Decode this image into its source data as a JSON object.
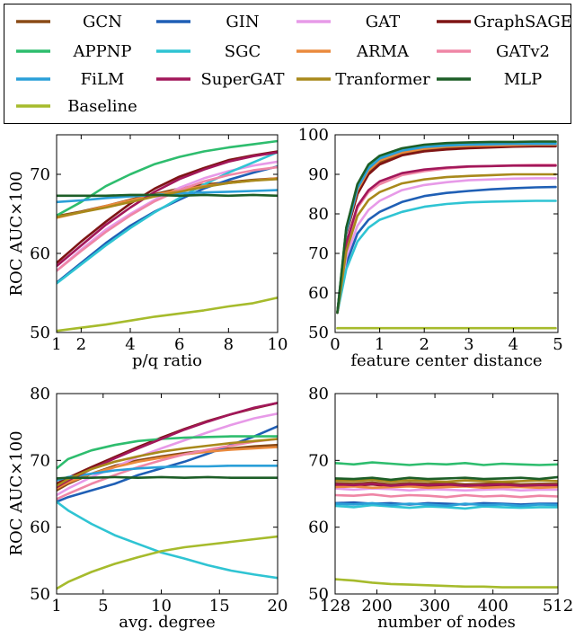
{
  "legend": {
    "entries": [
      {
        "name": "GCN",
        "color": "#8a4a16"
      },
      {
        "name": "GIN",
        "color": "#1f5fb5"
      },
      {
        "name": "GAT",
        "color": "#e79ae8"
      },
      {
        "name": "GraphSAGE",
        "color": "#7e1414"
      },
      {
        "name": "APPNP",
        "color": "#2ebd6e"
      },
      {
        "name": "SGC",
        "color": "#2fc4d3"
      },
      {
        "name": "ARMA",
        "color": "#ea8a3e"
      },
      {
        "name": "GATv2",
        "color": "#ef86a6"
      },
      {
        "name": "FiLM",
        "color": "#2a9fd8"
      },
      {
        "name": "SuperGAT",
        "color": "#a2175a"
      },
      {
        "name": "Tranformer",
        "color": "#a8891b"
      },
      {
        "name": "MLP",
        "color": "#1d5e27"
      },
      {
        "name": "Baseline",
        "color": "#a6bb2c"
      }
    ]
  },
  "chart_data": [
    {
      "type": "line",
      "xlabel": "p/q ratio",
      "ylabel": "ROC AUC×100",
      "xlim": [
        1,
        10
      ],
      "ylim": [
        50,
        75
      ],
      "xticks": [
        1,
        2,
        4,
        6,
        8,
        10
      ],
      "yticks": [
        50,
        60,
        70
      ],
      "x": [
        1,
        2,
        3,
        4,
        5,
        6,
        7,
        8,
        9,
        10
      ],
      "series": [
        {
          "name": "GCN",
          "values": [
            64.7,
            65.3,
            66.0,
            66.8,
            67.5,
            68.2,
            68.7,
            69.0,
            69.3,
            69.5
          ]
        },
        {
          "name": "GIN",
          "values": [
            56.3,
            58.8,
            61.3,
            63.5,
            65.3,
            66.8,
            68.2,
            69.3,
            70.2,
            71.0
          ]
        },
        {
          "name": "GAT",
          "values": [
            57.8,
            60.5,
            63.0,
            65.0,
            66.8,
            68.3,
            69.5,
            70.4,
            71.1,
            71.6
          ]
        },
        {
          "name": "GraphSAGE",
          "values": [
            58.8,
            61.5,
            64.0,
            66.3,
            68.2,
            69.7,
            70.8,
            71.8,
            72.4,
            72.9
          ]
        },
        {
          "name": "APPNP",
          "values": [
            64.8,
            66.5,
            68.5,
            70.0,
            71.3,
            72.2,
            72.9,
            73.4,
            73.8,
            74.2
          ]
        },
        {
          "name": "SGC",
          "values": [
            56.2,
            58.6,
            61.0,
            63.2,
            65.2,
            67.0,
            68.7,
            70.2,
            71.5,
            72.8
          ]
        },
        {
          "name": "ARMA",
          "values": [
            64.5,
            65.2,
            66.0,
            66.7,
            67.4,
            68.0,
            68.5,
            68.9,
            69.2,
            69.5
          ]
        },
        {
          "name": "GATv2",
          "values": [
            57.8,
            60.3,
            62.7,
            64.8,
            66.6,
            68.0,
            69.1,
            69.9,
            70.5,
            70.9
          ]
        },
        {
          "name": "FiLM",
          "values": [
            66.5,
            66.7,
            67.0,
            67.2,
            67.4,
            67.6,
            67.7,
            67.8,
            67.9,
            68.0
          ]
        },
        {
          "name": "SuperGAT",
          "values": [
            58.4,
            61.0,
            63.6,
            65.8,
            67.8,
            69.4,
            70.6,
            71.6,
            72.3,
            72.8
          ]
        },
        {
          "name": "Tranformer",
          "values": [
            64.6,
            65.2,
            65.8,
            66.5,
            67.2,
            67.8,
            68.4,
            68.9,
            69.2,
            69.4
          ]
        },
        {
          "name": "MLP",
          "values": [
            67.3,
            67.3,
            67.3,
            67.4,
            67.4,
            67.3,
            67.4,
            67.3,
            67.4,
            67.3
          ]
        },
        {
          "name": "Baseline",
          "values": [
            50.2,
            50.6,
            51.0,
            51.5,
            52.0,
            52.4,
            52.8,
            53.3,
            53.7,
            54.4
          ]
        }
      ]
    },
    {
      "type": "line",
      "xlabel": "feature center distance",
      "ylabel": "",
      "xlim": [
        0,
        5
      ],
      "ylim": [
        50,
        100
      ],
      "xticks": [
        0,
        1,
        2,
        3,
        4,
        5
      ],
      "yticks": [
        50,
        60,
        70,
        80,
        90,
        100
      ],
      "x": [
        0.05,
        0.25,
        0.5,
        0.75,
        1.0,
        1.5,
        2.0,
        2.5,
        3.0,
        3.5,
        4.0,
        4.5,
        4.95
      ],
      "series": [
        {
          "name": "GCN",
          "values": [
            55,
            75,
            85,
            90.5,
            93,
            95.3,
            96.2,
            96.7,
            97,
            97.1,
            97.2,
            97.3,
            97.3
          ]
        },
        {
          "name": "GIN",
          "values": [
            55,
            67.5,
            75,
            78.5,
            80.5,
            83,
            84.5,
            85.3,
            85.8,
            86.2,
            86.5,
            86.7,
            86.8
          ]
        },
        {
          "name": "GAT",
          "values": [
            55,
            69,
            77,
            81,
            83.3,
            86,
            87.3,
            88,
            88.5,
            88.7,
            88.9,
            89,
            89
          ]
        },
        {
          "name": "GraphSAGE",
          "values": [
            55,
            75,
            85,
            90,
            92.5,
            94.8,
            95.8,
            96.3,
            96.6,
            96.8,
            97,
            97.1,
            97.1
          ]
        },
        {
          "name": "APPNP",
          "values": [
            55,
            76.5,
            87,
            92,
            94.3,
            96.3,
            97.2,
            97.6,
            97.8,
            97.9,
            98,
            98,
            98
          ]
        },
        {
          "name": "SGC",
          "values": [
            55,
            66,
            73,
            76.5,
            78.5,
            80.5,
            81.8,
            82.5,
            82.9,
            83.1,
            83.2,
            83.3,
            83.3
          ]
        },
        {
          "name": "ARMA",
          "values": [
            55,
            75.5,
            86,
            91,
            93.5,
            95.5,
            96.5,
            97,
            97.2,
            97.3,
            97.4,
            97.5,
            97.5
          ]
        },
        {
          "name": "GATv2",
          "values": [
            55,
            72,
            81.5,
            85.5,
            87.5,
            89.8,
            90.8,
            91.5,
            91.9,
            92.1,
            92.3,
            92.4,
            92.4
          ]
        },
        {
          "name": "FiLM",
          "values": [
            55,
            75.5,
            86.5,
            91.5,
            94,
            96,
            96.9,
            97.3,
            97.5,
            97.6,
            97.7,
            97.7,
            97.7
          ]
        },
        {
          "name": "SuperGAT",
          "values": [
            55,
            72.5,
            82,
            86,
            88.2,
            90.3,
            91.2,
            91.7,
            92,
            92.1,
            92.2,
            92.2,
            92.2
          ]
        },
        {
          "name": "Tranformer",
          "values": [
            55,
            70.5,
            79.5,
            83.5,
            85.5,
            87.7,
            88.7,
            89.3,
            89.6,
            89.8,
            90,
            90,
            90
          ]
        },
        {
          "name": "MLP",
          "values": [
            55,
            76.5,
            87.5,
            92.5,
            94.7,
            96.6,
            97.5,
            97.9,
            98.1,
            98.2,
            98.2,
            98.3,
            98.3
          ]
        },
        {
          "name": "Baseline",
          "values": [
            51.1,
            51.1,
            51.1,
            51.1,
            51.1,
            51.1,
            51.1,
            51.1,
            51.1,
            51.1,
            51.1,
            51.1,
            51.1
          ]
        }
      ]
    },
    {
      "type": "line",
      "xlabel": "avg. degree",
      "ylabel": "ROC AUC×100",
      "xlim": [
        1,
        20
      ],
      "ylim": [
        50,
        80
      ],
      "xticks": [
        1,
        5,
        10,
        15,
        20
      ],
      "yticks": [
        50,
        60,
        70,
        80
      ],
      "x": [
        1,
        2,
        4,
        6,
        8,
        10,
        12,
        14,
        16,
        18,
        20
      ],
      "series": [
        {
          "name": "GCN",
          "values": [
            65.5,
            66.5,
            68,
            69.2,
            70,
            70.6,
            71.1,
            71.5,
            71.8,
            72.1,
            72.3
          ]
        },
        {
          "name": "GIN",
          "values": [
            63.8,
            64.5,
            65.5,
            66.5,
            67.8,
            68.8,
            69.8,
            71,
            72.3,
            73.6,
            75.1
          ]
        },
        {
          "name": "GAT",
          "values": [
            64.8,
            65.8,
            67.5,
            69,
            70.5,
            71.8,
            73,
            74.2,
            75.3,
            76.3,
            77
          ]
        },
        {
          "name": "GraphSAGE",
          "values": [
            66.5,
            67.4,
            69,
            70.5,
            72,
            73.4,
            74.7,
            75.9,
            76.9,
            77.8,
            78.6
          ]
        },
        {
          "name": "APPNP",
          "values": [
            68.8,
            70.2,
            71.5,
            72.3,
            72.9,
            73.2,
            73.4,
            73.5,
            73.6,
            73.6,
            73.6
          ]
        },
        {
          "name": "SGC",
          "values": [
            63.8,
            62.5,
            60.5,
            58.8,
            57.5,
            56.2,
            55.3,
            54.3,
            53.5,
            52.9,
            52.4
          ]
        },
        {
          "name": "ARMA",
          "values": [
            65.8,
            66.7,
            68,
            69,
            69.8,
            70.4,
            70.9,
            71.3,
            71.6,
            71.8,
            72
          ]
        },
        {
          "name": "GATv2",
          "values": [
            64.2,
            65,
            66.5,
            67.8,
            69,
            70,
            70.9,
            71.6,
            72.2,
            72.8,
            73.2
          ]
        },
        {
          "name": "FiLM",
          "values": [
            67,
            67.5,
            68,
            68.5,
            68.8,
            69,
            69.1,
            69.1,
            69.2,
            69.2,
            69.2
          ]
        },
        {
          "name": "SuperGAT",
          "values": [
            66,
            67,
            68.7,
            70.3,
            71.8,
            73.2,
            74.6,
            75.8,
            76.9,
            77.9,
            78.6
          ]
        },
        {
          "name": "Tranformer",
          "values": [
            66.2,
            67.2,
            68.7,
            69.8,
            70.6,
            71.3,
            71.8,
            72.2,
            72.6,
            72.9,
            73.2
          ]
        },
        {
          "name": "MLP",
          "values": [
            67.3,
            67.4,
            67.4,
            67.5,
            67.4,
            67.5,
            67.4,
            67.5,
            67.4,
            67.4,
            67.4
          ]
        },
        {
          "name": "Baseline",
          "values": [
            50.8,
            51.8,
            53.3,
            54.5,
            55.5,
            56.4,
            57,
            57.4,
            57.8,
            58.2,
            58.6
          ]
        }
      ]
    },
    {
      "type": "line",
      "xlabel": "number of nodes",
      "ylabel": "",
      "xlim": [
        128,
        512
      ],
      "ylim": [
        50,
        80
      ],
      "xticks": [
        128,
        200,
        300,
        400,
        512
      ],
      "yticks": [
        50,
        60,
        70,
        80
      ],
      "x": [
        128,
        160,
        192,
        224,
        256,
        288,
        320,
        352,
        384,
        416,
        448,
        480,
        512
      ],
      "series": [
        {
          "name": "GCN",
          "values": [
            66.6,
            66.5,
            66.7,
            66.4,
            66.6,
            66.5,
            66.6,
            66.4,
            66.5,
            66.6,
            66.4,
            66.5,
            66.5
          ]
        },
        {
          "name": "GIN",
          "values": [
            63.6,
            63.7,
            63.5,
            63.6,
            63.4,
            63.6,
            63.5,
            63.4,
            63.6,
            63.5,
            63.4,
            63.5,
            63.5
          ]
        },
        {
          "name": "GAT",
          "values": [
            65.8,
            65.6,
            65.8,
            65.7,
            65.5,
            65.7,
            65.6,
            65.5,
            65.6,
            65.7,
            65.5,
            65.6,
            65.6
          ]
        },
        {
          "name": "GraphSAGE",
          "values": [
            66.3,
            66.2,
            66.4,
            66.1,
            66.3,
            66.2,
            66.1,
            66.3,
            66.2,
            66.1,
            66.2,
            66.3,
            66.2
          ]
        },
        {
          "name": "APPNP",
          "values": [
            69.6,
            69.4,
            69.7,
            69.5,
            69.3,
            69.5,
            69.4,
            69.6,
            69.3,
            69.5,
            69.4,
            69.3,
            69.4
          ]
        },
        {
          "name": "SGC",
          "values": [
            63.2,
            63.0,
            63.3,
            63.1,
            62.9,
            63.1,
            63.0,
            62.8,
            63.1,
            63.0,
            62.9,
            63.0,
            63.0
          ]
        },
        {
          "name": "ARMA",
          "values": [
            66.0,
            66.1,
            65.9,
            66.0,
            66.1,
            65.9,
            66.0,
            66.1,
            65.9,
            66.0,
            66.0,
            65.9,
            66.0
          ]
        },
        {
          "name": "GATv2",
          "values": [
            64.8,
            64.7,
            64.9,
            64.6,
            64.8,
            64.7,
            64.5,
            64.8,
            64.6,
            64.7,
            64.5,
            64.7,
            64.6
          ]
        },
        {
          "name": "FiLM",
          "values": [
            63.5,
            63.4,
            63.6,
            63.3,
            63.5,
            63.4,
            63.2,
            63.5,
            63.3,
            63.4,
            63.2,
            63.4,
            63.3
          ]
        },
        {
          "name": "SuperGAT",
          "values": [
            66.4,
            66.3,
            66.5,
            66.2,
            66.4,
            66.3,
            66.4,
            66.2,
            66.3,
            66.4,
            66.2,
            66.3,
            66.3
          ]
        },
        {
          "name": "Tranformer",
          "values": [
            67.0,
            66.9,
            67.1,
            66.8,
            67.0,
            66.9,
            66.8,
            67.0,
            66.9,
            66.8,
            66.9,
            67.0,
            66.9
          ]
        },
        {
          "name": "MLP",
          "values": [
            67.3,
            67.2,
            67.4,
            67.1,
            67.4,
            67.2,
            67.3,
            67.4,
            67.2,
            67.3,
            67.4,
            67.2,
            67.5
          ]
        },
        {
          "name": "Baseline",
          "values": [
            52.2,
            52.0,
            51.7,
            51.5,
            51.4,
            51.3,
            51.2,
            51.1,
            51.1,
            51.0,
            51.0,
            51.0,
            51.0
          ]
        }
      ]
    }
  ]
}
